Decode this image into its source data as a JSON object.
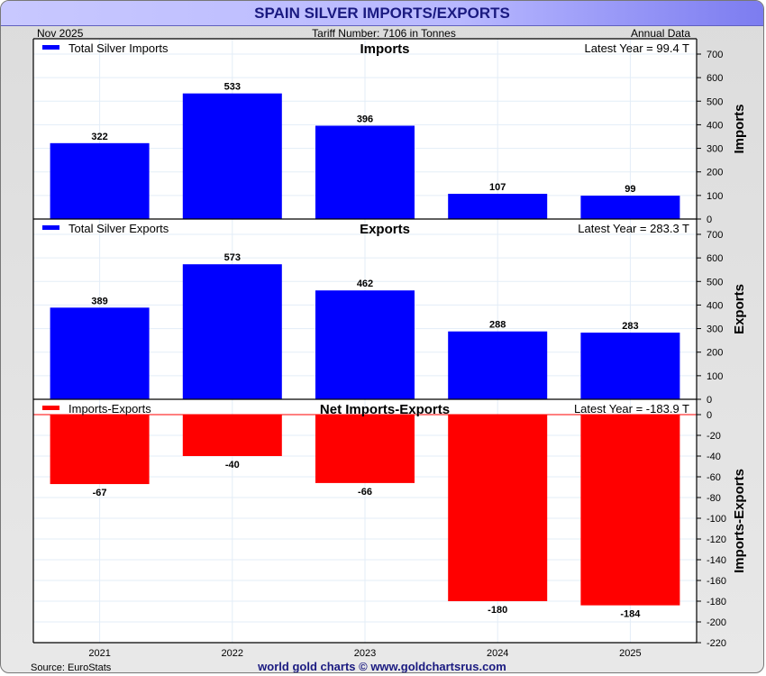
{
  "header": {
    "title": "SPAIN SILVER IMPORTS/EXPORTS",
    "date": "Nov  2025",
    "tariff": "Tariff Number: 7106 in Tonnes",
    "frequency": "Annual Data"
  },
  "footer": {
    "source": "Source: EuroStats",
    "credit": "world gold charts © www.goldchartsrus.com"
  },
  "colors": {
    "imports": "#0000ff",
    "exports": "#0000ff",
    "net": "#ff0000",
    "title": "#1a1a80"
  },
  "chart_data": [
    {
      "type": "bar",
      "title": "Imports",
      "legend": "Total Silver Imports",
      "latest": "Latest Year = 99.4 T",
      "ylabel": "Imports",
      "categories": [
        "2021",
        "2022",
        "2023",
        "2024",
        "2025"
      ],
      "values": [
        322,
        533,
        396,
        107,
        99
      ],
      "data_labels": [
        "322",
        "533",
        "396",
        "107",
        "99"
      ],
      "ylim": [
        0,
        700
      ],
      "yticks": [
        0,
        100,
        200,
        300,
        400,
        500,
        600,
        700
      ],
      "grid": true,
      "legend_position": "top-left"
    },
    {
      "type": "bar",
      "title": "Exports",
      "legend": "Total Silver Exports",
      "latest": "Latest Year = 283.3 T",
      "ylabel": "Exports",
      "categories": [
        "2021",
        "2022",
        "2023",
        "2024",
        "2025"
      ],
      "values": [
        389,
        573,
        462,
        288,
        283
      ],
      "data_labels": [
        "389",
        "573",
        "462",
        "288",
        "283"
      ],
      "ylim": [
        0,
        700
      ],
      "yticks": [
        0,
        100,
        200,
        300,
        400,
        500,
        600,
        700
      ],
      "grid": true,
      "legend_position": "top-left"
    },
    {
      "type": "bar",
      "title": "Net Imports-Exports",
      "legend": "Imports-Exports",
      "latest": "Latest Year = -183.9 T",
      "ylabel": "Imports-Exports",
      "categories": [
        "2021",
        "2022",
        "2023",
        "2024",
        "2025"
      ],
      "values": [
        -67,
        -40,
        -66,
        -180,
        -184
      ],
      "data_labels": [
        "-67",
        "-40",
        "-66",
        "-180",
        "-184"
      ],
      "ylim": [
        -220,
        0
      ],
      "yticks": [
        0,
        -20,
        -40,
        -60,
        -80,
        -100,
        -120,
        -140,
        -160,
        -180,
        -200,
        -220
      ],
      "grid": true,
      "legend_position": "top-left"
    }
  ]
}
